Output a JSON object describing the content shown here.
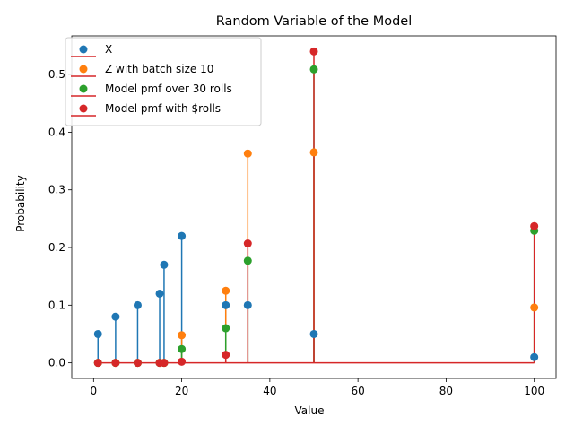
{
  "chart_data": {
    "type": "stem",
    "title": "Random Variable of the Model",
    "xlabel": "Value",
    "ylabel": "Probability",
    "xlim": [
      -4.95,
      104.95
    ],
    "ylim": [
      -0.027,
      0.567
    ],
    "xticks": [
      0,
      20,
      40,
      60,
      80,
      100
    ],
    "yticks": [
      0.0,
      0.1,
      0.2,
      0.3,
      0.4,
      0.5
    ],
    "xtick_labels": [
      "0",
      "20",
      "40",
      "60",
      "80",
      "100"
    ],
    "ytick_labels": [
      "0.0",
      "0.1",
      "0.2",
      "0.3",
      "0.4",
      "0.5"
    ],
    "baseline": 0,
    "baseline_color": "#d62728",
    "grid": false,
    "legend_position": "top-left",
    "series": [
      {
        "name": "X",
        "color": "#1f77b4",
        "x": [
          1,
          5,
          10,
          15,
          16,
          20,
          30,
          35,
          50,
          100
        ],
        "y": [
          0.05,
          0.08,
          0.1,
          0.12,
          0.17,
          0.22,
          0.1,
          0.1,
          0.05,
          0.01
        ]
      },
      {
        "name": "Z with batch size 10",
        "color": "#ff7f0e",
        "x": [
          1,
          5,
          10,
          15,
          16,
          20,
          30,
          35,
          50,
          100
        ],
        "y": [
          0.0,
          0.0,
          0.0,
          0.0,
          0.0,
          0.048,
          0.125,
          0.363,
          0.365,
          0.096
        ]
      },
      {
        "name": "Model pmf over 30 rolls",
        "color": "#2ca02c",
        "x": [
          1,
          5,
          10,
          15,
          16,
          20,
          30,
          35,
          50,
          100
        ],
        "y": [
          0.0,
          0.0,
          0.0,
          0.0,
          0.0,
          0.024,
          0.06,
          0.177,
          0.509,
          0.229
        ]
      },
      {
        "name": "Model pmf with $rolls",
        "color": "#d62728",
        "x": [
          1,
          5,
          10,
          15,
          16,
          20,
          30,
          35,
          50,
          100
        ],
        "y": [
          0.0,
          0.0,
          0.0,
          0.0,
          0.0,
          0.002,
          0.014,
          0.207,
          0.54,
          0.237
        ]
      }
    ]
  }
}
